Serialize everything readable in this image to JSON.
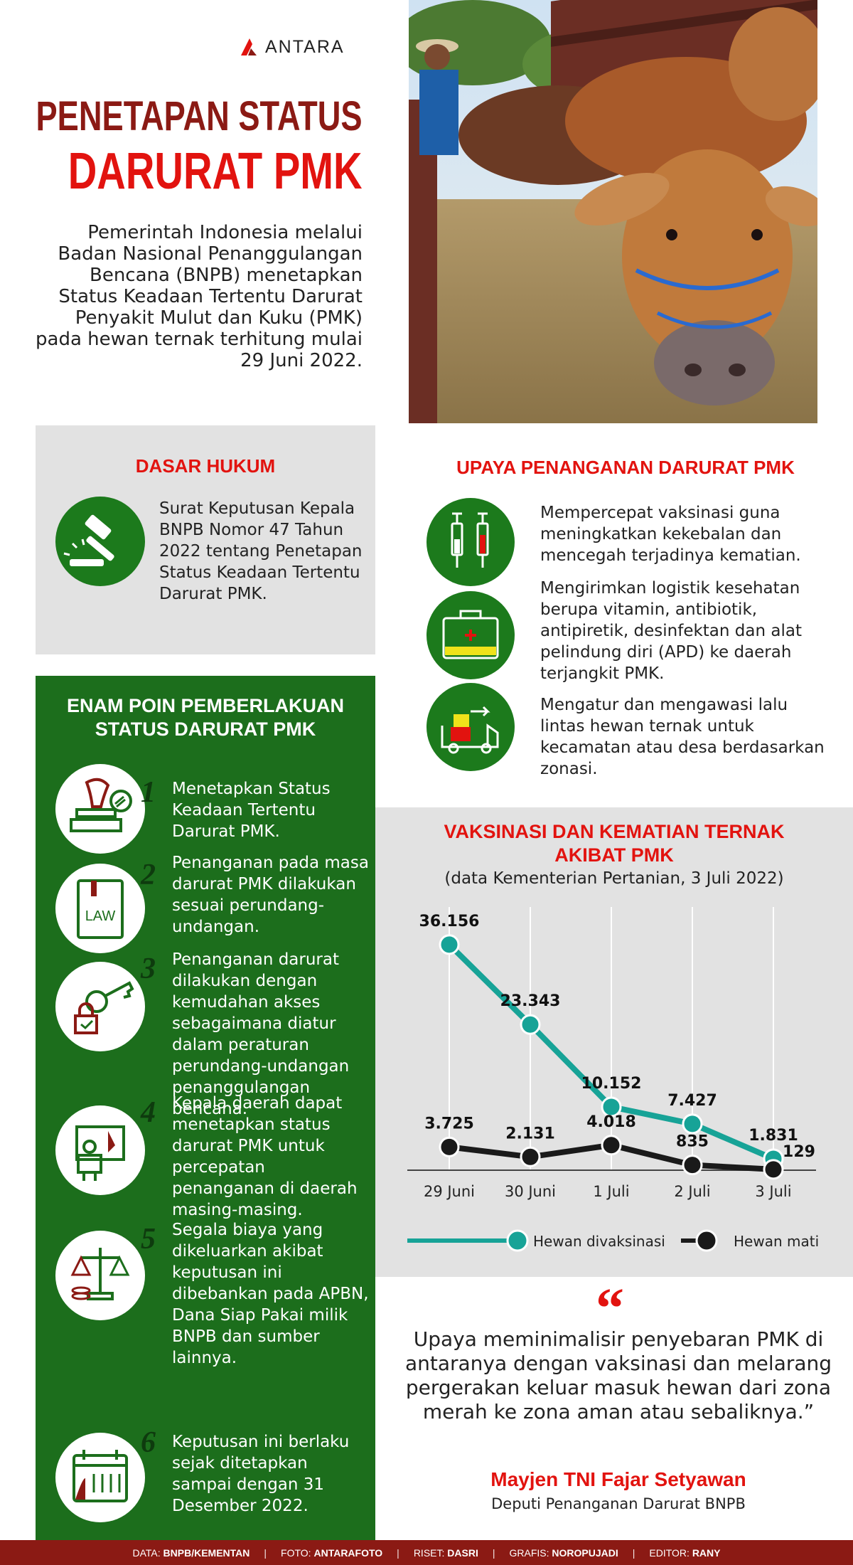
{
  "brand": {
    "name": "ANTARA"
  },
  "header": {
    "title_line1": "PENETAPAN STATUS",
    "title_line2": "DARURAT PMK",
    "intro": "Pemerintah Indonesia melalui Badan Nasional Penanggulangan Bencana (BNPB) menetapkan Status Keadaan Tertentu Darurat Penyakit Mulut dan Kuku (PMK) pada hewan ternak terhitung mulai 29 Juni 2022."
  },
  "dasar_hukum": {
    "title": "DASAR HUKUM",
    "text": "Surat Keputusan Kepala BNPB Nomor 47 Tahun 2022 tentang Penetapan Status Keadaan Tertentu Darurat PMK.",
    "icon": "gavel-icon"
  },
  "enam_poin": {
    "title_line1": "ENAM POIN PEMBERLAKUAN",
    "title_line2": "STATUS DARURAT PMK",
    "points": [
      {
        "num": "1",
        "text": "Menetapkan Status Keadaan Tertentu Darurat PMK.",
        "icon": "stamp-icon"
      },
      {
        "num": "2",
        "text": "Penanganan pada masa darurat PMK dilakukan sesuai perundang-undangan.",
        "icon": "law-book-icon",
        "book_label": "LAW"
      },
      {
        "num": "3",
        "text": "Penanganan darurat dilakukan dengan kemudahan akses sebagaimana diatur dalam peraturan perundang-undangan penanggulangan bencana.",
        "icon": "key-lock-icon"
      },
      {
        "num": "4",
        "text": "Kepala daerah dapat menetapkan status darurat PMK untuk percepatan penanganan di daerah masing-masing.",
        "icon": "presenter-icon"
      },
      {
        "num": "5",
        "text": "Segala biaya yang dikeluarkan akibat keputusan ini dibebankan pada APBN, Dana Siap Pakai milik BNPB dan sumber lainnya.",
        "icon": "scale-coins-icon"
      },
      {
        "num": "6",
        "text": "Keputusan ini berlaku sejak ditetapkan sampai dengan 31 Desember 2022.",
        "icon": "calendar-icon"
      }
    ]
  },
  "upaya": {
    "title": "UPAYA PENANGANAN DARURAT PMK",
    "items": [
      {
        "text": "Mempercepat vaksinasi guna meningkatkan kekebalan dan mencegah terjadinya kematian.",
        "icon": "syringe-icon"
      },
      {
        "text": "Mengirimkan logistik kesehatan berupa vitamin, antibiotik, antipiretik, desinfektan dan alat pelindung diri (APD) ke daerah terjangkit PMK.",
        "icon": "medical-kit-icon"
      },
      {
        "text": "Mengatur dan mengawasi lalu lintas hewan ternak untuk kecamatan atau desa berdasarkan zonasi.",
        "icon": "delivery-truck-icon"
      }
    ]
  },
  "chart_data": {
    "type": "line",
    "title_line1": "VAKSINASI DAN KEMATIAN TERNAK",
    "title_line2": "AKIBAT PMK",
    "subtitle": "(data Kementerian Pertanian, 3 Juli 2022)",
    "categories": [
      "29 Juni",
      "30 Juni",
      "1 Juli",
      "2 Juli",
      "3 Juli"
    ],
    "series": [
      {
        "name": "Hewan divaksinasi",
        "values": [
          36156,
          23343,
          10152,
          7427,
          1831
        ],
        "labels": [
          "36.156",
          "23.343",
          "10.152",
          "7.427",
          "1.831"
        ],
        "color": "#17a397"
      },
      {
        "name": "Hewan mati",
        "values": [
          3725,
          2131,
          4018,
          835,
          129
        ],
        "labels": [
          "3.725",
          "2.131",
          "4.018",
          "835",
          "129"
        ],
        "color": "#1a1a1a"
      }
    ],
    "legend": "bottom",
    "grid": "vertical"
  },
  "quote": {
    "mark": "“",
    "text": "Upaya meminimalisir penyebaran PMK di antaranya dengan vaksinasi dan melarang pergerakan keluar masuk hewan dari zona merah ke zona aman atau sebaliknya.”",
    "author": "Mayjen TNI Fajar Setyawan",
    "role": "Deputi Penanganan Darurat BNPB"
  },
  "footer": {
    "data_label": "DATA:",
    "data_value": "BNPB/KEMENTAN",
    "foto_label": "FOTO:",
    "foto_value": "ANTARAFOTO",
    "riset_label": "RISET:",
    "riset_value": "DASRI",
    "grafis_label": "GRAFIS:",
    "grafis_value": "NOROPUJADI",
    "editor_label": "EDITOR:",
    "editor_value": "RANY"
  },
  "colors": {
    "dark_red": "#8b1a14",
    "red": "#e2130f",
    "green": "#1c6e1c",
    "teal": "#17a397",
    "panel_gray": "#e2e2e2"
  }
}
